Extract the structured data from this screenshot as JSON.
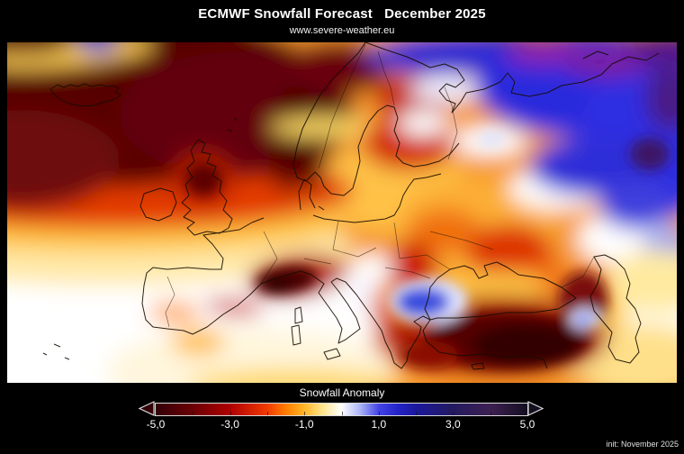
{
  "header": {
    "title": "ECMWF Snowfall Forecast   December 2025",
    "website": "www.severe-weather.eu"
  },
  "map": {
    "region": "Europe, North Atlantic and western Russia",
    "projection_note": "filled anomaly field with coastlines and country borders",
    "anomaly_readings": [
      {
        "area": "North Atlantic / Iceland / Greenland Sea",
        "anomaly": "strongly negative (-3 to -5)"
      },
      {
        "area": "Norway mountains",
        "anomaly": "strongly negative (-3 to -5)"
      },
      {
        "area": "Scotland",
        "anomaly": "strongly negative (-3 to -4)"
      },
      {
        "area": "Alps",
        "anomaly": "strongly negative (-4 to -5)"
      },
      {
        "area": "Turkey / Anatolia / Caucasus",
        "anomaly": "strongly negative (-4 to -5)"
      },
      {
        "area": "Central and Eastern Europe, Balkans, Finland",
        "anomaly": "moderately negative (-1 to -3)"
      },
      {
        "area": "Arctic Russia / Barents and Kara region",
        "anomaly": "positive (+1 to +4)"
      },
      {
        "area": "Romania / lower Danube",
        "anomaly": "positive (+1 to +2)"
      },
      {
        "area": "Small spot near Caucasus",
        "anomaly": "positive (+1)"
      },
      {
        "area": "Southwest Europe, Iberia, Bay of Biscay, Azores",
        "anomaly": "near zero"
      }
    ]
  },
  "colorbar": {
    "label": "Snowfall Anomaly",
    "range": [
      -5,
      5
    ],
    "tick_labels": [
      "-5,0",
      "-3,0",
      "-1,0",
      "1,0",
      "3,0",
      "5,0"
    ],
    "minor_tick_values": [
      -4,
      -3,
      -2,
      -1,
      0,
      1,
      2,
      3,
      4
    ],
    "gradient_stops": [
      {
        "value": -5,
        "color": "#330008"
      },
      {
        "value": -4,
        "color": "#6b0005"
      },
      {
        "value": -3,
        "color": "#b00000"
      },
      {
        "value": -2,
        "color": "#f13b00"
      },
      {
        "value": -1.5,
        "color": "#ff7d00"
      },
      {
        "value": -1,
        "color": "#ffb527"
      },
      {
        "value": -0.5,
        "color": "#ffe590"
      },
      {
        "value": 0,
        "color": "#ffffff"
      },
      {
        "value": 0.5,
        "color": "#aab4f5"
      },
      {
        "value": 1,
        "color": "#4343e6"
      },
      {
        "value": 1.5,
        "color": "#2424c8"
      },
      {
        "value": 2,
        "color": "#1b189c"
      },
      {
        "value": 3,
        "color": "#241a60"
      },
      {
        "value": 4,
        "color": "#3d2052"
      },
      {
        "value": 5,
        "color": "#140f20"
      }
    ],
    "border_color": "#d9d9d9"
  },
  "footer": {
    "init_label": "init: November 2025"
  },
  "page": {
    "background": "#000000",
    "text_color": "#ffffff"
  }
}
